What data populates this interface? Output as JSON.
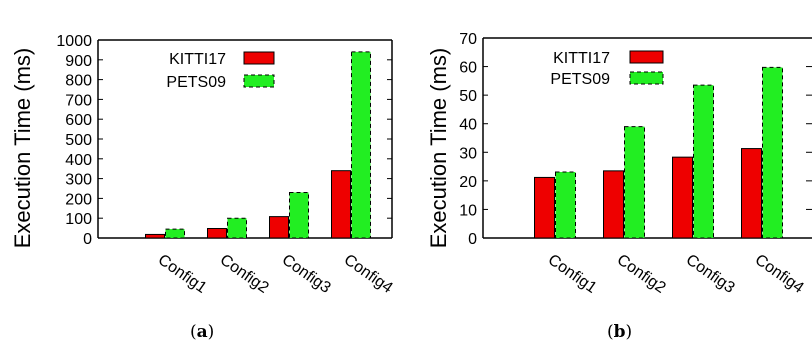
{
  "chart_data": [
    {
      "type": "bar",
      "panel_label": "a",
      "ylabel": "Execution Time (ms)",
      "categories": [
        "Config1",
        "Config2",
        "Config3",
        "Config4"
      ],
      "ylim": [
        0,
        1000
      ],
      "yticks": [
        0,
        100,
        200,
        300,
        400,
        500,
        600,
        700,
        800,
        900,
        1000
      ],
      "legend_position": "top-left",
      "grid": false,
      "series": [
        {
          "name": "KITTI17",
          "values": [
            18,
            48,
            108,
            340
          ],
          "color": "#ee0000",
          "pattern": "solid"
        },
        {
          "name": "PETS09",
          "values": [
            45,
            100,
            230,
            940
          ],
          "color": "#22ee22",
          "pattern": "dashed"
        }
      ]
    },
    {
      "type": "bar",
      "panel_label": "b",
      "ylabel": "Execution Time (ms)",
      "categories": [
        "Config1",
        "Config2",
        "Config3",
        "Config4"
      ],
      "ylim": [
        0,
        70
      ],
      "yticks": [
        0,
        10,
        20,
        30,
        40,
        50,
        60,
        70
      ],
      "legend_position": "top-left",
      "grid": false,
      "series": [
        {
          "name": "KITTI17",
          "values": [
            21.2,
            23.5,
            28.3,
            31.3
          ],
          "color": "#ee0000",
          "pattern": "solid"
        },
        {
          "name": "PETS09",
          "values": [
            23.1,
            39.0,
            53.5,
            59.7
          ],
          "color": "#22ee22",
          "pattern": "dashed"
        }
      ]
    }
  ],
  "captions": {
    "a": "(a)",
    "b": "(b)"
  }
}
